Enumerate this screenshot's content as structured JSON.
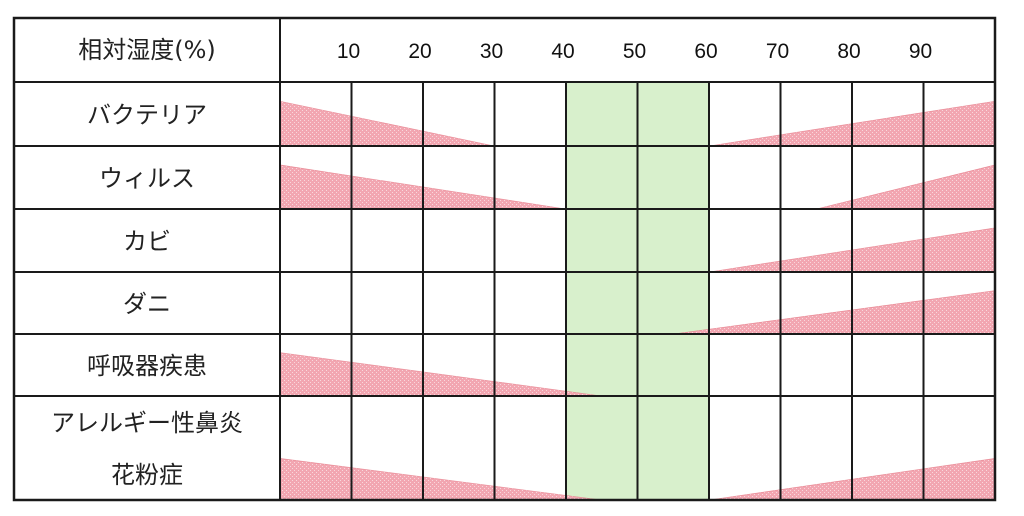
{
  "chart_data": {
    "type": "table",
    "header_label": "相対湿度(%)",
    "x_ticks": [
      10,
      20,
      30,
      40,
      50,
      60,
      70,
      80,
      90
    ],
    "xlim": [
      0,
      100
    ],
    "optimal_range": [
      40,
      60
    ],
    "colors": {
      "optimal": "#d8f0cc",
      "risk": "#f0a0ac",
      "risk_edge": "#e06070",
      "grid": "#1a1a1a"
    },
    "rows": [
      {
        "label_lines": [
          "バクテリア"
        ],
        "bands": [
          {
            "side": "left",
            "from": 0,
            "to": 30,
            "level": 0.7
          },
          {
            "side": "right",
            "from": 60,
            "to": 100,
            "level": 0.7
          }
        ]
      },
      {
        "label_lines": [
          "ウィルス"
        ],
        "bands": [
          {
            "side": "left",
            "from": 0,
            "to": 40,
            "level": 0.7
          },
          {
            "side": "right",
            "from": 75,
            "to": 100,
            "level": 0.7
          }
        ]
      },
      {
        "label_lines": [
          "カビ"
        ],
        "bands": [
          {
            "side": "right",
            "from": 60,
            "to": 100,
            "level": 0.7
          }
        ]
      },
      {
        "label_lines": [
          "ダニ"
        ],
        "bands": [
          {
            "side": "right",
            "from": 55,
            "to": 100,
            "level": 0.7
          }
        ]
      },
      {
        "label_lines": [
          "呼吸器疾患"
        ],
        "bands": [
          {
            "side": "left",
            "from": 0,
            "to": 45,
            "level": 0.7
          }
        ]
      },
      {
        "label_lines": [
          "アレルギー性鼻炎",
          "花粉症"
        ],
        "bands": [
          {
            "side": "left",
            "from": 0,
            "to": 45,
            "level": 0.4
          },
          {
            "side": "right",
            "from": 60,
            "to": 100,
            "level": 0.4
          }
        ]
      }
    ]
  }
}
